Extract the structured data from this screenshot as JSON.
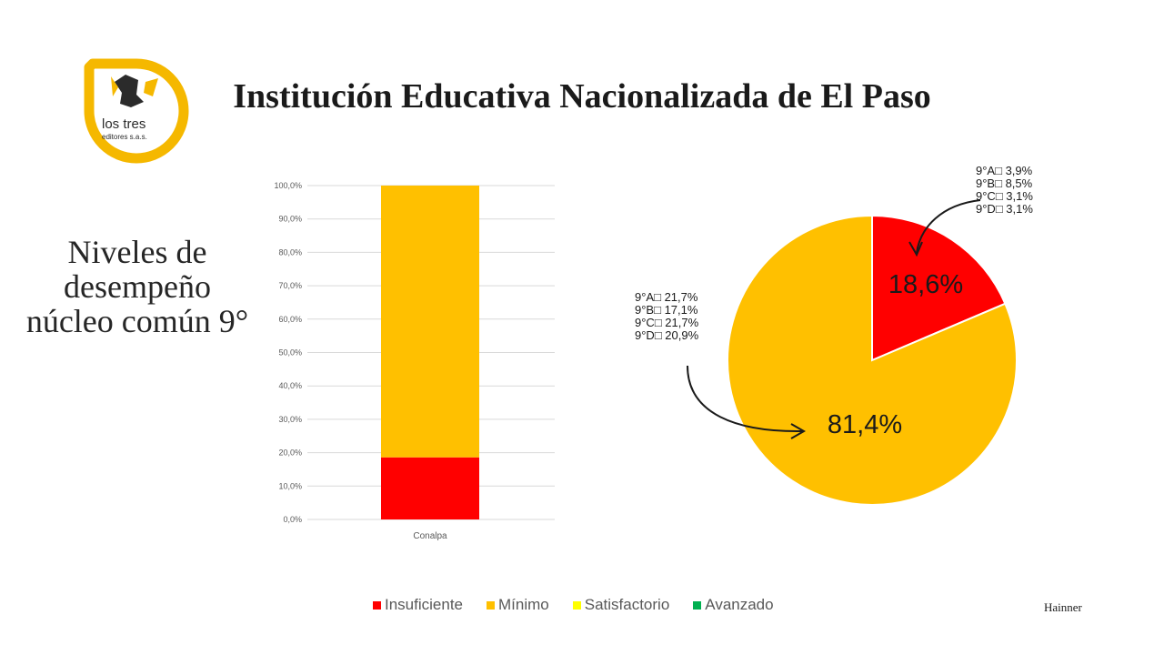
{
  "logo": {
    "line1": "los tres",
    "line2": "editores s.a.s."
  },
  "title": "Institución Educativa Nacionalizada de El Paso",
  "subtitle": "Niveles de desempeño núcleo común 9°",
  "author": "Hainner",
  "colors": {
    "insuficiente": "#ff0000",
    "minimo": "#ffc000",
    "satisfactorio": "#ffff00",
    "avanzado": "#00b050"
  },
  "legend": [
    {
      "label": "Insuficiente",
      "color": "#ff0000"
    },
    {
      "label": "Mínimo",
      "color": "#ffc000"
    },
    {
      "label": "Satisfactorio",
      "color": "#ffff00"
    },
    {
      "label": "Avanzado",
      "color": "#00b050"
    }
  ],
  "chart_data": [
    {
      "type": "bar",
      "stacked": true,
      "categories": [
        "Conalpa"
      ],
      "series": [
        {
          "name": "Insuficiente",
          "values": [
            18.6
          ]
        },
        {
          "name": "Mínimo",
          "values": [
            81.4
          ]
        },
        {
          "name": "Satisfactorio",
          "values": [
            0
          ]
        },
        {
          "name": "Avanzado",
          "values": [
            0
          ]
        }
      ],
      "ylim": [
        0,
        100
      ],
      "yticks": [
        "0,0%",
        "10,0%",
        "20,0%",
        "30,0%",
        "40,0%",
        "50,0%",
        "60,0%",
        "70,0%",
        "80,0%",
        "90,0%",
        "100,0%"
      ],
      "grid": true
    },
    {
      "type": "pie",
      "slices": [
        {
          "name": "Insuficiente",
          "value": 18.6,
          "label": "18,6%"
        },
        {
          "name": "Mínimo",
          "value": 81.4,
          "label": "81,4%"
        }
      ],
      "annotations": [
        {
          "target": "Insuficiente",
          "lines": [
            "9°A□  3,9%",
            "9°B□  8,5%",
            "9°C□  3,1%",
            "9°D□  3,1%"
          ]
        },
        {
          "target": "Mínimo",
          "lines": [
            "9°A□  21,7%",
            "9°B□  17,1%",
            "9°C□  21,7%",
            "9°D□  20,9%"
          ]
        }
      ]
    }
  ]
}
